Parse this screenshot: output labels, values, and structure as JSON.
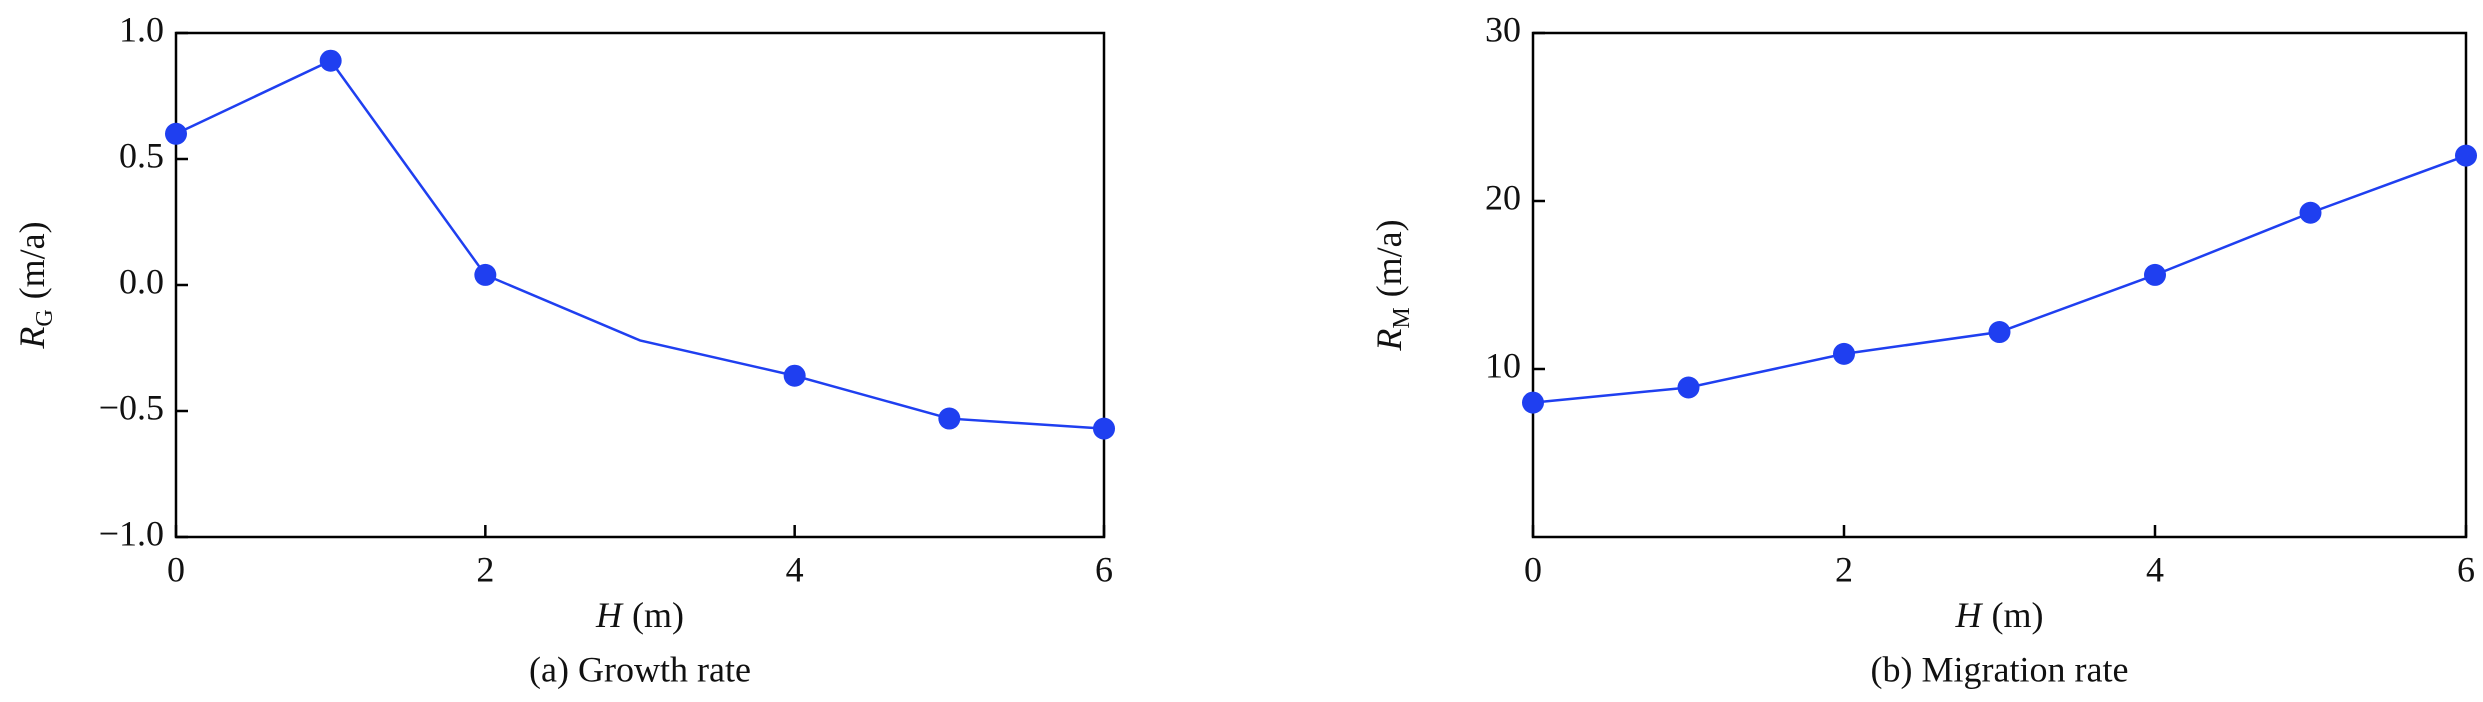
{
  "chart_data": [
    {
      "type": "line",
      "title": "(a)  Growth rate",
      "x_label": {
        "symbol": "H",
        "unit": "(m)"
      },
      "y_label": {
        "symbol": "R",
        "subscript": "G",
        "unit": "(m/a)"
      },
      "x": [
        0,
        1,
        2,
        3,
        4,
        5,
        6
      ],
      "values": [
        0.6,
        0.89,
        0.04,
        -0.22,
        -0.36,
        -0.53,
        -0.57
      ],
      "markers": [
        true,
        true,
        true,
        false,
        true,
        true,
        true
      ],
      "color": "#1f3ff0",
      "xlim": [
        0,
        6
      ],
      "xticks": [
        0,
        2,
        4,
        6
      ],
      "ylim": [
        -1,
        1
      ],
      "yticks": [
        {
          "value": -1,
          "label": "−1.0"
        },
        {
          "value": -0.5,
          "label": "−0.5"
        },
        {
          "value": 0,
          "label": "0.0"
        },
        {
          "value": 0.5,
          "label": "0.5"
        },
        {
          "value": 1,
          "label": "1.0"
        }
      ]
    },
    {
      "type": "line",
      "title": "(b) Migration rate",
      "x_label": {
        "symbol": "H",
        "unit": "(m)"
      },
      "y_label": {
        "symbol": "R",
        "subscript": "M",
        "unit": "(m/a)"
      },
      "x": [
        0,
        1,
        2,
        3,
        4,
        5,
        6
      ],
      "values": [
        8.0,
        8.9,
        10.9,
        12.2,
        15.6,
        19.3,
        22.7
      ],
      "markers": [
        true,
        true,
        true,
        true,
        true,
        true,
        true
      ],
      "color": "#1f3ff0",
      "xlim": [
        0,
        6
      ],
      "xticks": [
        0,
        2,
        4,
        6
      ],
      "ylim": [
        0,
        30
      ],
      "yticks": [
        10,
        20,
        30
      ]
    }
  ]
}
